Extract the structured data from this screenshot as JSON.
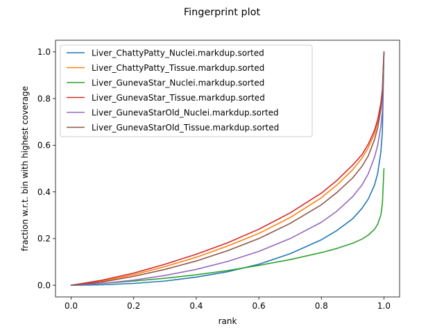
{
  "chart_data": {
    "type": "line",
    "title": "Fingerprint plot",
    "xlabel": "rank",
    "ylabel": "fraction w.r.t. bin with highest coverage",
    "xlim": [
      -0.05,
      1.05
    ],
    "ylim": [
      -0.05,
      1.05
    ],
    "xticks": [
      0.0,
      0.2,
      0.4,
      0.6,
      0.8,
      1.0
    ],
    "xtick_labels": [
      "0.0",
      "0.2",
      "0.4",
      "0.6",
      "0.8",
      "1.0"
    ],
    "yticks": [
      0.0,
      0.2,
      0.4,
      0.6,
      0.8,
      1.0
    ],
    "ytick_labels": [
      "0.0",
      "0.2",
      "0.4",
      "0.6",
      "0.8",
      "1.0"
    ],
    "grid": false,
    "legend_position": "top-left",
    "series": [
      {
        "name": "Liver_ChattyPatty_Nuclei.markdup.sorted",
        "color": "#1f77b4",
        "x": [
          0.0,
          0.1,
          0.2,
          0.3,
          0.4,
          0.5,
          0.6,
          0.7,
          0.8,
          0.85,
          0.9,
          0.93,
          0.95,
          0.97,
          0.98,
          0.99,
          0.995,
          1.0
        ],
        "y": [
          0.0,
          0.002,
          0.008,
          0.018,
          0.035,
          0.058,
          0.09,
          0.135,
          0.195,
          0.235,
          0.285,
          0.33,
          0.37,
          0.43,
          0.48,
          0.57,
          0.66,
          1.0
        ]
      },
      {
        "name": "Liver_ChattyPatty_Tissue.markdup.sorted",
        "color": "#ff7f0e",
        "x": [
          0.0,
          0.1,
          0.2,
          0.3,
          0.4,
          0.5,
          0.6,
          0.7,
          0.8,
          0.85,
          0.9,
          0.93,
          0.95,
          0.97,
          0.98,
          0.99,
          0.995,
          1.0
        ],
        "y": [
          0.0,
          0.018,
          0.045,
          0.08,
          0.12,
          0.168,
          0.222,
          0.29,
          0.375,
          0.43,
          0.495,
          0.545,
          0.59,
          0.65,
          0.7,
          0.77,
          0.83,
          1.0
        ]
      },
      {
        "name": "Liver_GunevaStar_Nuclei.markdup.sorted",
        "color": "#2ca02c",
        "x": [
          0.0,
          0.1,
          0.2,
          0.3,
          0.4,
          0.5,
          0.6,
          0.7,
          0.8,
          0.85,
          0.9,
          0.93,
          0.95,
          0.97,
          0.98,
          0.99,
          0.995,
          1.0
        ],
        "y": [
          0.0,
          0.008,
          0.018,
          0.03,
          0.045,
          0.063,
          0.085,
          0.11,
          0.14,
          0.158,
          0.18,
          0.198,
          0.215,
          0.24,
          0.262,
          0.3,
          0.35,
          0.5
        ]
      },
      {
        "name": "Liver_GunevaStar_Tissue.markdup.sorted",
        "color": "#d62728",
        "x": [
          0.0,
          0.1,
          0.2,
          0.3,
          0.4,
          0.5,
          0.6,
          0.7,
          0.8,
          0.85,
          0.9,
          0.93,
          0.95,
          0.97,
          0.98,
          0.99,
          0.995,
          1.0
        ],
        "y": [
          0.0,
          0.022,
          0.052,
          0.09,
          0.133,
          0.182,
          0.24,
          0.31,
          0.395,
          0.45,
          0.515,
          0.56,
          0.605,
          0.665,
          0.71,
          0.78,
          0.84,
          1.0
        ]
      },
      {
        "name": "Liver_GunevaStarOld_Nuclei.markdup.sorted",
        "color": "#9467bd",
        "x": [
          0.0,
          0.1,
          0.2,
          0.3,
          0.4,
          0.5,
          0.6,
          0.7,
          0.8,
          0.85,
          0.9,
          0.93,
          0.95,
          0.97,
          0.98,
          0.99,
          0.995,
          1.0
        ],
        "y": [
          0.0,
          0.008,
          0.022,
          0.042,
          0.068,
          0.102,
          0.145,
          0.2,
          0.27,
          0.318,
          0.38,
          0.43,
          0.478,
          0.55,
          0.6,
          0.68,
          0.75,
          1.0
        ]
      },
      {
        "name": "Liver_GunevaStarOld_Tissue.markdup.sorted",
        "color": "#8c564b",
        "x": [
          0.0,
          0.1,
          0.2,
          0.3,
          0.4,
          0.5,
          0.6,
          0.7,
          0.8,
          0.85,
          0.9,
          0.93,
          0.95,
          0.97,
          0.98,
          0.99,
          0.995,
          1.0
        ],
        "y": [
          0.0,
          0.014,
          0.038,
          0.068,
          0.104,
          0.148,
          0.2,
          0.265,
          0.345,
          0.398,
          0.46,
          0.51,
          0.555,
          0.625,
          0.675,
          0.755,
          0.82,
          1.0
        ]
      }
    ]
  }
}
